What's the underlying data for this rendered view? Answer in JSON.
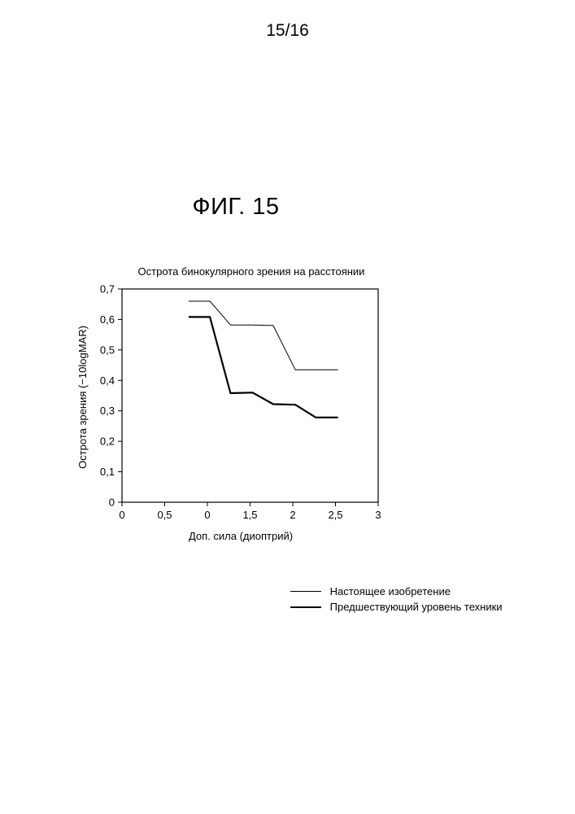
{
  "page": {
    "number": "15/16",
    "figure_title": "ФИГ. 15"
  },
  "chart_data": {
    "type": "line",
    "title": "Острота бинокулярного зрения на расстоянии",
    "xlabel": "Доп. сила (диоптрий)",
    "ylabel": "Острота зрения (−10logMAR)",
    "x_tick_labels": [
      "0",
      "0,5",
      "0",
      "1,5",
      "2",
      "2,5",
      "3"
    ],
    "y_tick_labels": [
      "0",
      "0,1",
      "0,2",
      "0,3",
      "0,4",
      "0,5",
      "0,6",
      "0,7"
    ],
    "xlim": [
      0,
      3
    ],
    "ylim": [
      0,
      0.7
    ],
    "grid": false,
    "legend_position": "bottom-right",
    "series": [
      {
        "name": "Настоящее изобретение",
        "style": "thin",
        "color": "#000000",
        "points": [
          [
            0.78,
            0.66
          ],
          [
            1.03,
            0.66
          ],
          [
            1.27,
            0.582
          ],
          [
            1.53,
            0.582
          ],
          [
            1.77,
            0.58
          ],
          [
            2.03,
            0.435
          ],
          [
            2.27,
            0.435
          ],
          [
            2.53,
            0.435
          ]
        ]
      },
      {
        "name": "Предшествующий уровень техники",
        "style": "thick",
        "color": "#000000",
        "points": [
          [
            0.78,
            0.608
          ],
          [
            1.03,
            0.608
          ],
          [
            1.27,
            0.358
          ],
          [
            1.53,
            0.36
          ],
          [
            1.77,
            0.322
          ],
          [
            2.03,
            0.32
          ],
          [
            2.27,
            0.278
          ],
          [
            2.53,
            0.278
          ]
        ]
      }
    ]
  },
  "legend": [
    {
      "label": "Настоящее изобретение"
    },
    {
      "label": "Предшествующий уровень техники"
    }
  ]
}
